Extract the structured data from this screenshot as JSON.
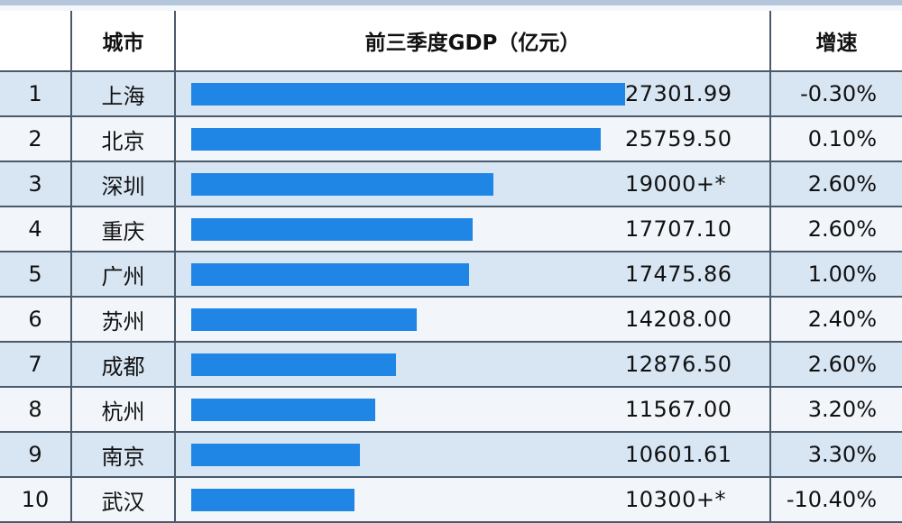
{
  "headers": {
    "rank": "",
    "city": "城市",
    "gdp": "前三季度GDP（亿元）",
    "growth": "增速"
  },
  "colors": {
    "bar": "#1f86e6",
    "row_odd": "#d8e6f4",
    "row_even": "#f2f6fb"
  },
  "chart_data": {
    "type": "table",
    "title": "",
    "columns": [
      "",
      "城市",
      "前三季度GDP（亿元）",
      "增速"
    ],
    "rows": [
      {
        "rank": "1",
        "city": "上海",
        "gdp": 27301.99,
        "gdp_label": "27301.99",
        "growth": "-0.30%"
      },
      {
        "rank": "2",
        "city": "北京",
        "gdp": 25759.5,
        "gdp_label": "25759.50",
        "growth": "0.10%"
      },
      {
        "rank": "3",
        "city": "深圳",
        "gdp": 19000,
        "gdp_label": "19000+*",
        "growth": "2.60%"
      },
      {
        "rank": "4",
        "city": "重庆",
        "gdp": 17707.1,
        "gdp_label": "17707.10",
        "growth": "2.60%"
      },
      {
        "rank": "5",
        "city": "广州",
        "gdp": 17475.86,
        "gdp_label": "17475.86",
        "growth": "1.00%"
      },
      {
        "rank": "6",
        "city": "苏州",
        "gdp": 14208.0,
        "gdp_label": "14208.00",
        "growth": "2.40%"
      },
      {
        "rank": "7",
        "city": "成都",
        "gdp": 12876.5,
        "gdp_label": "12876.50",
        "growth": "2.60%"
      },
      {
        "rank": "8",
        "city": "杭州",
        "gdp": 11567.0,
        "gdp_label": "11567.00",
        "growth": "3.20%"
      },
      {
        "rank": "9",
        "city": "南京",
        "gdp": 10601.61,
        "gdp_label": "10601.61",
        "growth": "3.30%"
      },
      {
        "rank": "10",
        "city": "武汉",
        "gdp": 10300,
        "gdp_label": "10300+*",
        "growth": "-10.40%"
      }
    ]
  }
}
